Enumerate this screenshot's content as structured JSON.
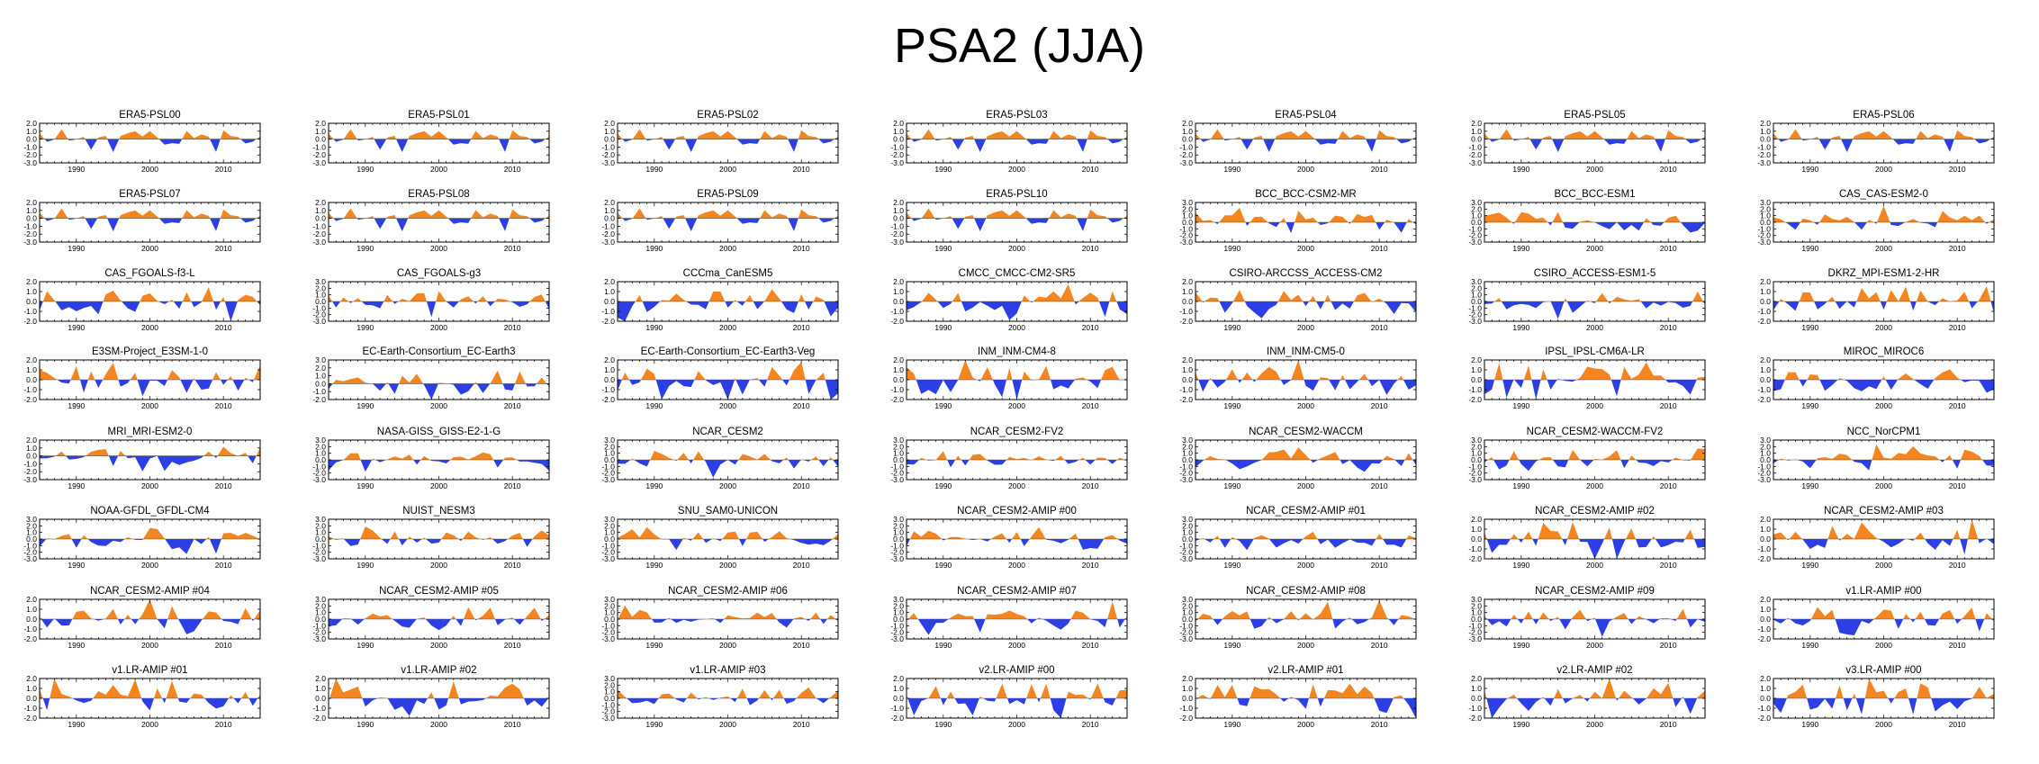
{
  "figure_title": "PSA2 (JJA)",
  "chart_data": {
    "type": "area",
    "title": "PSA2 (JJA)",
    "layout": "8 rows x 7 columns of panels",
    "x_range": [
      1985,
      2015
    ],
    "x_ticks": [
      "1990",
      "2000",
      "2010"
    ],
    "colors": {
      "positive": "#f5851f",
      "negative": "#2c3fe6",
      "axis": "#000000"
    },
    "y_axes": {
      "A": {
        "ylim": [
          -3.0,
          2.0
        ],
        "ticks": [
          "2.0",
          "1.0",
          "0.0",
          "-1.0",
          "-2.0",
          "-3.0"
        ]
      },
      "B": {
        "ylim": [
          -3.0,
          3.0
        ],
        "ticks": [
          "3.0",
          "2.0",
          "1.0",
          "0.0",
          "-1.0",
          "-2.0",
          "-3.0"
        ]
      },
      "C": {
        "ylim": [
          -2.0,
          2.0
        ],
        "ticks": [
          "2.0",
          "1.0",
          "0.0",
          "-1.0",
          "-2.0"
        ]
      },
      "D": {
        "ylim": [
          -2.0,
          3.0
        ],
        "ticks": [
          "3.0",
          "2.0",
          "1.0",
          "0.0",
          "-1.0",
          "-2.0"
        ]
      }
    },
    "panels": [
      {
        "title": "ERA5-PSL00",
        "yaxis": "A",
        "seed": 11
      },
      {
        "title": "ERA5-PSL01",
        "yaxis": "A",
        "seed": 11
      },
      {
        "title": "ERA5-PSL02",
        "yaxis": "A",
        "seed": 11
      },
      {
        "title": "ERA5-PSL03",
        "yaxis": "A",
        "seed": 11
      },
      {
        "title": "ERA5-PSL04",
        "yaxis": "A",
        "seed": 11
      },
      {
        "title": "ERA5-PSL05",
        "yaxis": "A",
        "seed": 11
      },
      {
        "title": "ERA5-PSL06",
        "yaxis": "A",
        "seed": 11
      },
      {
        "title": "ERA5-PSL07",
        "yaxis": "A",
        "seed": 11
      },
      {
        "title": "ERA5-PSL08",
        "yaxis": "A",
        "seed": 11
      },
      {
        "title": "ERA5-PSL09",
        "yaxis": "A",
        "seed": 11
      },
      {
        "title": "ERA5-PSL10",
        "yaxis": "A",
        "seed": 11
      },
      {
        "title": "BCC_BCC-CSM2-MR",
        "yaxis": "B",
        "seed": 23
      },
      {
        "title": "BCC_BCC-ESM1",
        "yaxis": "B",
        "seed": 37
      },
      {
        "title": "CAS_CAS-ESM2-0",
        "yaxis": "B",
        "seed": 41
      },
      {
        "title": "CAS_FGOALS-f3-L",
        "yaxis": "C",
        "seed": 53
      },
      {
        "title": "CAS_FGOALS-g3",
        "yaxis": "B",
        "seed": 67
      },
      {
        "title": "CCCma_CanESM5",
        "yaxis": "C",
        "seed": 71
      },
      {
        "title": "CMCC_CMCC-CM2-SR5",
        "yaxis": "C",
        "seed": 83
      },
      {
        "title": "CSIRO-ARCCSS_ACCESS-CM2",
        "yaxis": "C",
        "seed": 97
      },
      {
        "title": "CSIRO_ACCESS-ESM1-5",
        "yaxis": "B",
        "seed": 101
      },
      {
        "title": "DKRZ_MPI-ESM1-2-HR",
        "yaxis": "C",
        "seed": 113
      },
      {
        "title": "E3SM-Project_E3SM-1-0",
        "yaxis": "C",
        "seed": 127
      },
      {
        "title": "EC-Earth-Consortium_EC-Earth3",
        "yaxis": "D",
        "seed": 131
      },
      {
        "title": "EC-Earth-Consortium_EC-Earth3-Veg",
        "yaxis": "C",
        "seed": 149
      },
      {
        "title": "INM_INM-CM4-8",
        "yaxis": "C",
        "seed": 151
      },
      {
        "title": "INM_INM-CM5-0",
        "yaxis": "C",
        "seed": 163
      },
      {
        "title": "IPSL_IPSL-CM6A-LR",
        "yaxis": "C",
        "seed": 173
      },
      {
        "title": "MIROC_MIROC6",
        "yaxis": "C",
        "seed": 181
      },
      {
        "title": "MRI_MRI-ESM2-0",
        "yaxis": "A",
        "seed": 191
      },
      {
        "title": "NASA-GISS_GISS-E2-1-G",
        "yaxis": "B",
        "seed": 193
      },
      {
        "title": "NCAR_CESM2",
        "yaxis": "B",
        "seed": 197
      },
      {
        "title": "NCAR_CESM2-FV2",
        "yaxis": "B",
        "seed": 199
      },
      {
        "title": "NCAR_CESM2-WACCM",
        "yaxis": "B",
        "seed": 211
      },
      {
        "title": "NCAR_CESM2-WACCM-FV2",
        "yaxis": "B",
        "seed": 223
      },
      {
        "title": "NCC_NorCPM1",
        "yaxis": "B",
        "seed": 227
      },
      {
        "title": "NOAA-GFDL_GFDL-CM4",
        "yaxis": "B",
        "seed": 229
      },
      {
        "title": "NUIST_NESM3",
        "yaxis": "B",
        "seed": 233
      },
      {
        "title": "SNU_SAM0-UNICON",
        "yaxis": "B",
        "seed": 239
      },
      {
        "title": "NCAR_CESM2-AMIP  #00",
        "yaxis": "B",
        "seed": 241
      },
      {
        "title": "NCAR_CESM2-AMIP  #01",
        "yaxis": "B",
        "seed": 251
      },
      {
        "title": "NCAR_CESM2-AMIP  #02",
        "yaxis": "C",
        "seed": 257
      },
      {
        "title": "NCAR_CESM2-AMIP  #03",
        "yaxis": "C",
        "seed": 263
      },
      {
        "title": "NCAR_CESM2-AMIP  #04",
        "yaxis": "C",
        "seed": 269
      },
      {
        "title": "NCAR_CESM2-AMIP  #05",
        "yaxis": "B",
        "seed": 271
      },
      {
        "title": "NCAR_CESM2-AMIP  #06",
        "yaxis": "B",
        "seed": 277
      },
      {
        "title": "NCAR_CESM2-AMIP  #07",
        "yaxis": "B",
        "seed": 281
      },
      {
        "title": "NCAR_CESM2-AMIP  #08",
        "yaxis": "B",
        "seed": 283
      },
      {
        "title": "NCAR_CESM2-AMIP  #09",
        "yaxis": "B",
        "seed": 293
      },
      {
        "title": "v1.LR-AMIP  #00",
        "yaxis": "C",
        "seed": 307
      },
      {
        "title": "v1.LR-AMIP  #01",
        "yaxis": "C",
        "seed": 311
      },
      {
        "title": "v1.LR-AMIP  #02",
        "yaxis": "C",
        "seed": 313
      },
      {
        "title": "v1.LR-AMIP  #03",
        "yaxis": "B",
        "seed": 317
      },
      {
        "title": "v2.LR-AMIP  #00",
        "yaxis": "C",
        "seed": 331
      },
      {
        "title": "v2.LR-AMIP  #01",
        "yaxis": "C",
        "seed": 337
      },
      {
        "title": "v2.LR-AMIP  #02",
        "yaxis": "C",
        "seed": 347
      },
      {
        "title": "v3.LR-AMIP  #00",
        "yaxis": "C",
        "seed": 349
      }
    ]
  }
}
